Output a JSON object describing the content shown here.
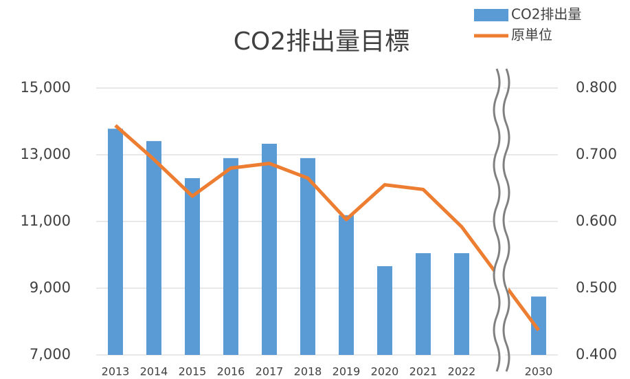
{
  "chart_data": {
    "type": "bar-line",
    "title": "CO2排出量目標",
    "categories": [
      "2013",
      "2014",
      "2015",
      "2016",
      "2017",
      "2018",
      "2019",
      "2020",
      "2021",
      "2022",
      "2030"
    ],
    "series": [
      {
        "name": "CO2排出量",
        "type": "bar",
        "color": "#5b9bd5",
        "axis": "y",
        "values": [
          13780,
          13410,
          12300,
          12900,
          13330,
          12900,
          11190,
          9660,
          10050,
          10050,
          8750
        ]
      },
      {
        "name": "原単位",
        "type": "line",
        "color": "#ed7d31",
        "axis": "y2",
        "values": [
          0.744,
          0.693,
          0.638,
          0.68,
          0.687,
          0.665,
          0.603,
          0.655,
          0.648,
          0.592,
          0.437
        ]
      }
    ],
    "ylim": [
      7000,
      15000
    ],
    "yticks": [
      {
        "value": 7000,
        "label": "7,000"
      },
      {
        "value": 9000,
        "label": "9,000"
      },
      {
        "value": 11000,
        "label": "11,000"
      },
      {
        "value": 13000,
        "label": "13,000"
      },
      {
        "value": 15000,
        "label": "15,000"
      }
    ],
    "y2lim": [
      0.4,
      0.8
    ],
    "y2ticks": [
      {
        "value": 0.4,
        "label": "0.400"
      },
      {
        "value": 0.5,
        "label": "0.500"
      },
      {
        "value": 0.6,
        "label": "0.600"
      },
      {
        "value": 0.7,
        "label": "0.700"
      },
      {
        "value": 0.8,
        "label": "0.800"
      }
    ],
    "grid": true,
    "legend": "top-right"
  }
}
